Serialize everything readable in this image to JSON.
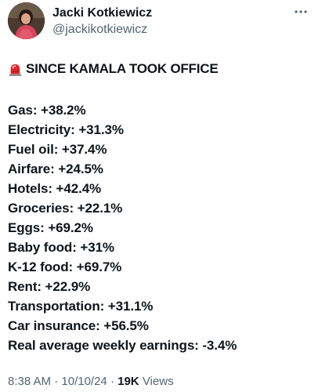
{
  "author": {
    "name": "Jacki Kotkiewicz",
    "handle": "@jackikotkiewicz",
    "avatar_icon": "profile-photo"
  },
  "post": {
    "headline_icon": "police-light-siren-emoji",
    "headline": "SINCE KAMALA TOOK OFFICE",
    "stats": [
      "Gas: +38.2%",
      "Electricity: +31.3%",
      "Fuel oil: +37.4%",
      "Airfare: +24.5%",
      "Hotels: +42.4%",
      "Groceries: +22.1%",
      "Eggs: +69.2%",
      "Baby food: +31%",
      "K-12 food: +69.7%",
      "Rent: +22.9%",
      "Transportation: +31.1%",
      "Car insurance: +56.5%",
      "Real average weekly earnings: -3.4%"
    ]
  },
  "meta": {
    "time": "8:38 AM",
    "separator": "·",
    "date": "10/10/24",
    "views_count": "19K",
    "views_label": "Views"
  },
  "colors": {
    "text": "#0f1419",
    "secondary": "#536471",
    "siren_red": "#e0242b"
  }
}
